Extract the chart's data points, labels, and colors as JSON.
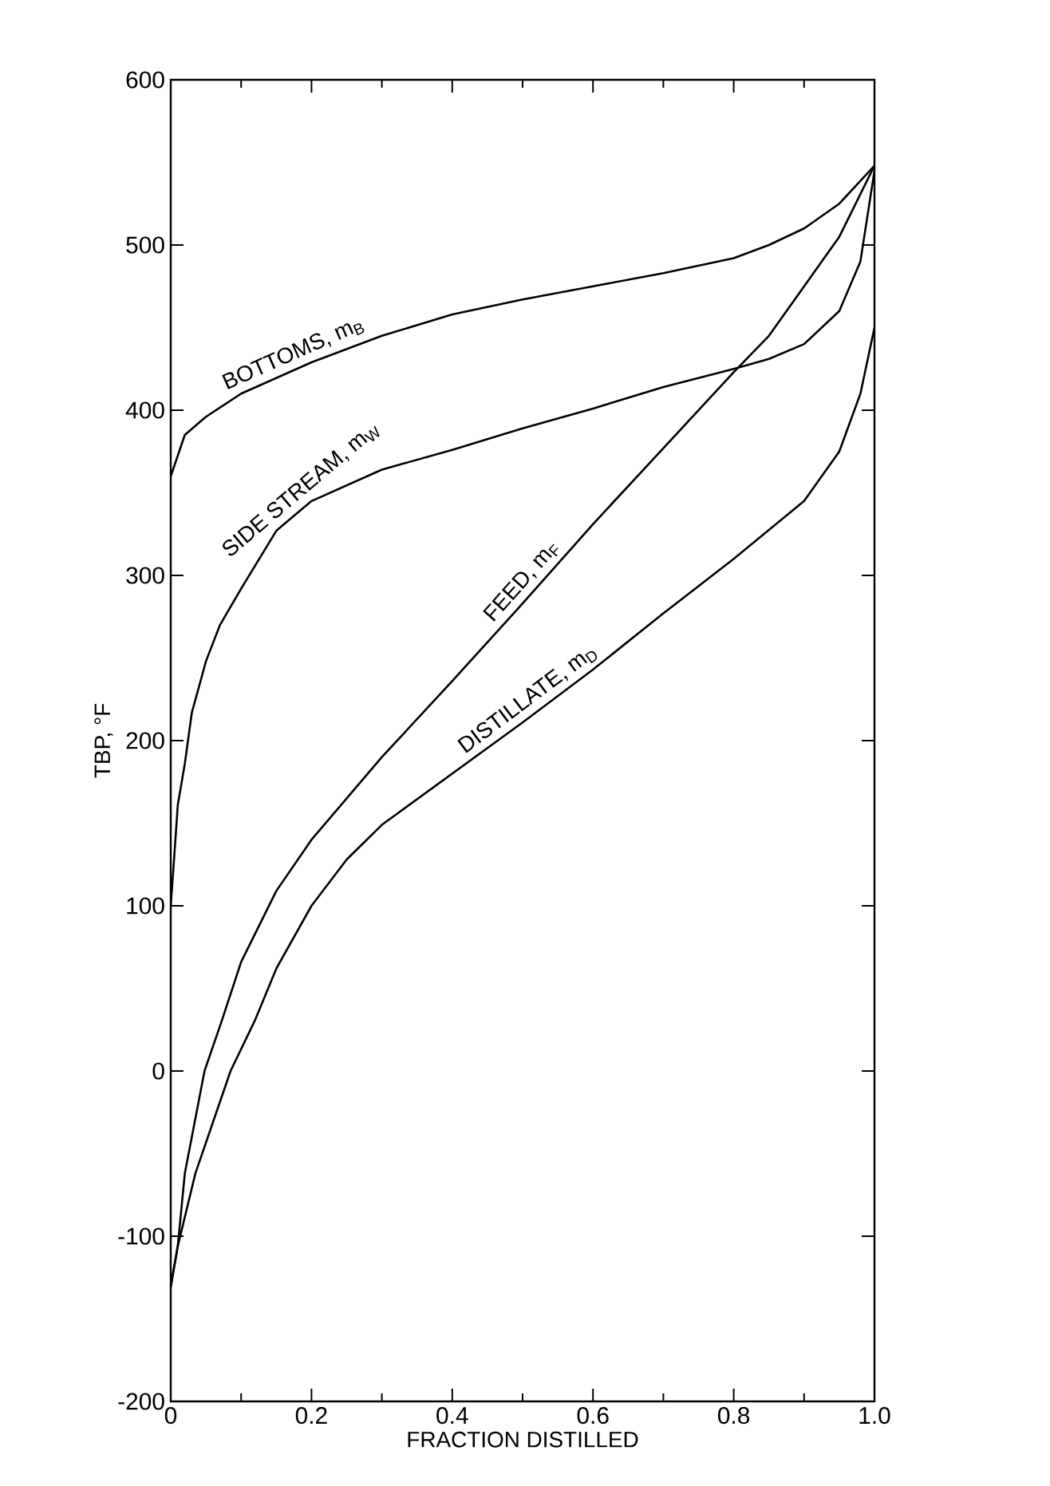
{
  "chart_data": {
    "type": "line",
    "xlabel": "FRACTION DISTILLED",
    "ylabel": "TBP, °F",
    "xlim": [
      0,
      1
    ],
    "ylim": [
      -200,
      600
    ],
    "xticks": [
      {
        "value": 0,
        "label": "0"
      },
      0.2,
      0.4,
      0.6,
      0.8,
      {
        "value": 1,
        "label": "1.0"
      }
    ],
    "yticks": [
      -200,
      -100,
      0,
      100,
      200,
      300,
      400,
      500,
      600
    ],
    "grid": false,
    "legend": false,
    "marker": "none",
    "line_style": "solid",
    "series": [
      {
        "name": "BOTTOMS, m$_{B}$",
        "color": "#000000",
        "x": [
          0,
          0.02,
          0.05,
          0.1,
          0.2,
          0.3,
          0.4,
          0.5,
          0.6,
          0.7,
          0.8,
          0.85,
          0.9,
          0.95,
          1.0
        ],
        "values": [
          360,
          385,
          396,
          410,
          429,
          445,
          458,
          467,
          475,
          483,
          492,
          500,
          510,
          525,
          548
        ]
      },
      {
        "name": "SIDE STREAM, m$_{W}$",
        "color": "#000000",
        "x": [
          0,
          0.005,
          0.01,
          0.02,
          0.03,
          0.05,
          0.07,
          0.1,
          0.15,
          0.2,
          0.3,
          0.4,
          0.5,
          0.6,
          0.7,
          0.8,
          0.85,
          0.9,
          0.95,
          0.98,
          1.0
        ],
        "values": [
          100,
          130,
          161,
          186,
          217,
          248,
          270,
          292,
          327,
          345,
          364,
          376,
          389,
          401,
          414,
          425,
          431,
          440,
          460,
          490,
          545
        ]
      },
      {
        "name": "FEED, m$_{F}$",
        "color": "#000000",
        "x": [
          0,
          0.01,
          0.02,
          0.048,
          0.073,
          0.1,
          0.15,
          0.2,
          0.3,
          0.4,
          0.5,
          0.6,
          0.7,
          0.8,
          0.85,
          0.9,
          0.95,
          1.0
        ],
        "values": [
          -130,
          -106,
          -62,
          0,
          31,
          66,
          109,
          140,
          190,
          236,
          283,
          331,
          377,
          423,
          445,
          475,
          505,
          548
        ]
      },
      {
        "name": "DISTILLATE, m$_{D}$",
        "color": "#000000",
        "x": [
          0,
          0.01,
          0.035,
          0.085,
          0.12,
          0.15,
          0.2,
          0.25,
          0.3,
          0.4,
          0.5,
          0.6,
          0.7,
          0.8,
          0.9,
          0.95,
          0.98,
          1.0
        ],
        "values": [
          -131,
          -106,
          -62,
          0,
          31,
          62,
          100,
          128,
          149,
          180,
          211,
          243,
          277,
          310,
          345,
          375,
          410,
          450
        ]
      }
    ]
  }
}
